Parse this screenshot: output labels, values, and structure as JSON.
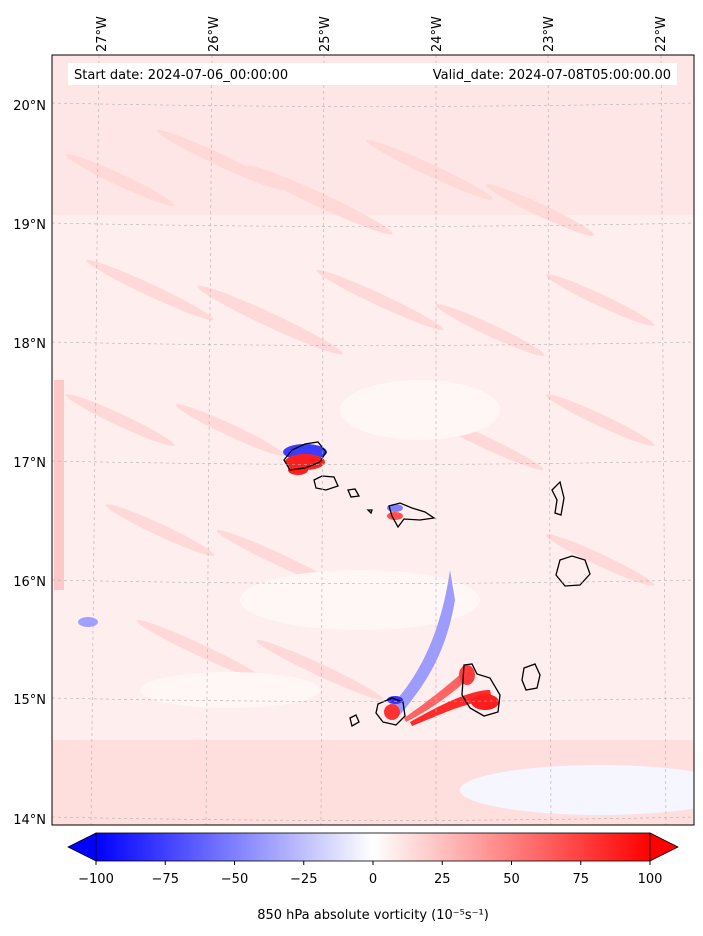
{
  "header": {
    "start_date": "Start date: 2024-07-06_00:00:00",
    "valid_date": "Valid_date: 2024-07-08T05:00:00.00"
  },
  "map": {
    "lon_labels": [
      "27°W",
      "26°W",
      "25°W",
      "24°W",
      "23°W",
      "22°W"
    ],
    "lat_labels": [
      "20°N",
      "19°N",
      "18°N",
      "17°N",
      "16°N",
      "15°N",
      "14°N"
    ],
    "lon_range": [
      -27.4,
      -21.85
    ],
    "lat_range": [
      13.95,
      20.4
    ],
    "gridlines": true
  },
  "colorbar": {
    "ticks": [
      "−100",
      "−75",
      "−50",
      "−25",
      "0",
      "25",
      "50",
      "75",
      "100"
    ],
    "tick_values": [
      -100,
      -75,
      -50,
      -25,
      0,
      25,
      50,
      75,
      100
    ],
    "range": [
      -100,
      100
    ],
    "colormap": "bwr",
    "extend": "both",
    "label": "850 hPa absolute vorticity (10⁻⁵s⁻¹)",
    "colors": {
      "negative": "#0000ff",
      "zero": "#ffffff",
      "positive": "#ff0000"
    }
  }
}
